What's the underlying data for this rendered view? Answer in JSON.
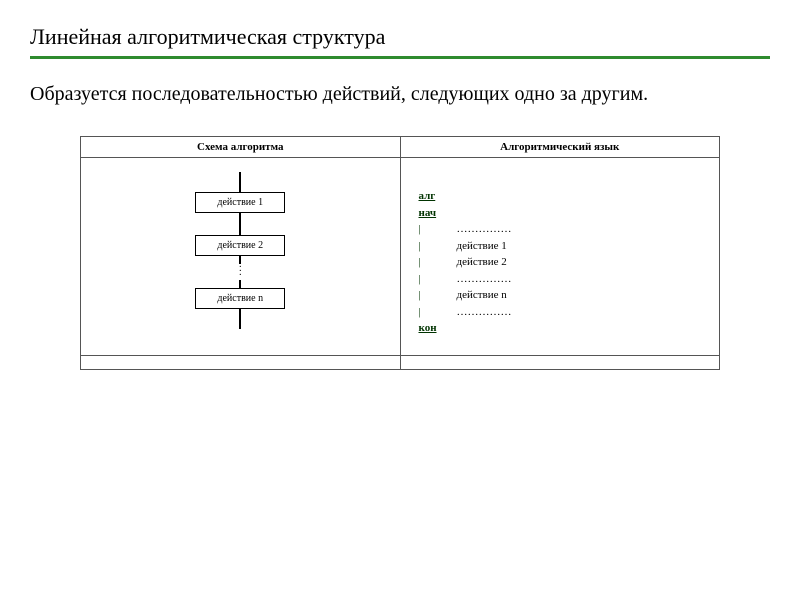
{
  "title": "Линейная алгоритмическая структура",
  "description": "Образуется последовательностью действий, следующих одно за другим.",
  "table": {
    "headers": {
      "left": "Схема алгоритма",
      "right": "Алгоритмический язык"
    }
  },
  "flowchart": {
    "type": "flowchart",
    "boxes": {
      "b1": "действие 1",
      "b2": "действие 2",
      "bn": "действие n"
    },
    "box_border_color": "#000000",
    "line_color": "#000000",
    "box_fontsize": 10
  },
  "code": {
    "keywords": {
      "alg": "алг",
      "nach": "нач",
      "kon": "кон"
    },
    "lines": {
      "d0": "……………",
      "d1": "действие 1",
      "d2": "действие 2",
      "d3": "……………",
      "dn": "действие n",
      "d4": "……………"
    },
    "keyword_color": "#003300",
    "fontsize": 11
  },
  "colors": {
    "background": "#ffffff",
    "text": "#000000",
    "accent_line": "#2e8b2e",
    "table_border": "#555555"
  }
}
